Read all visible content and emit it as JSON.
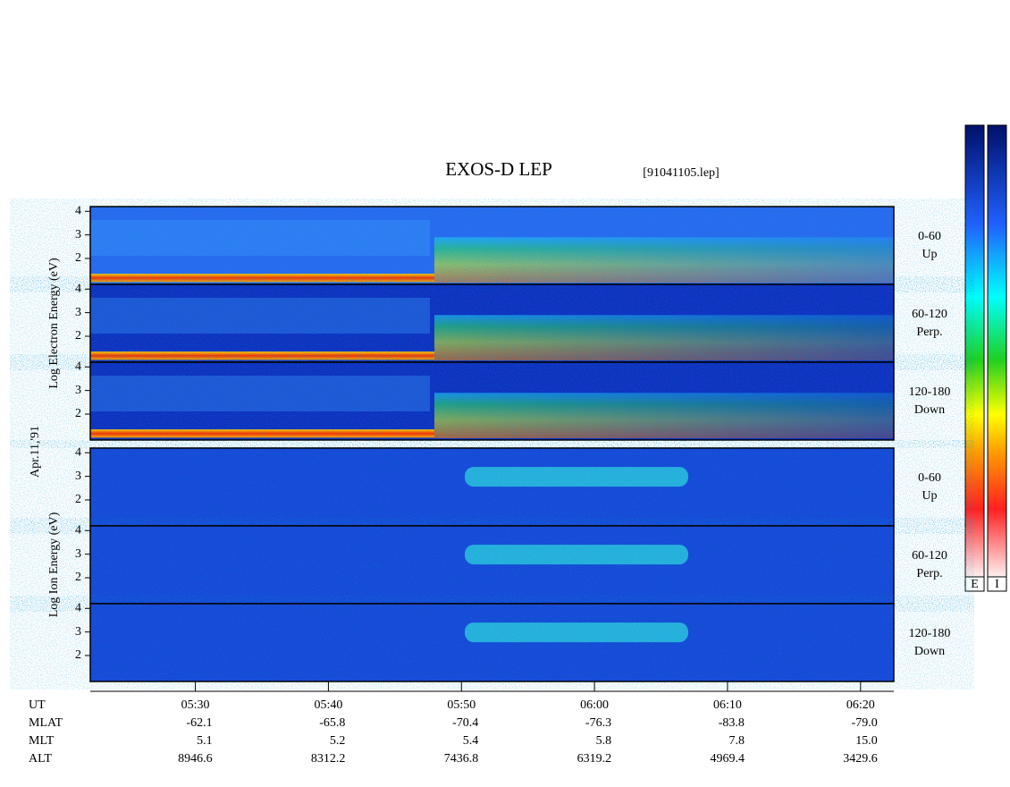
{
  "chart_data": {
    "type": "spectrogram",
    "title": "EXOS-D LEP",
    "file_label": "[91041105.lep]",
    "date_label": "Apr.11,'91",
    "groups": [
      {
        "ylabel": "Log Electron Energy (eV)",
        "panels": [
          {
            "angle": "0-60",
            "direction": "Up"
          },
          {
            "angle": "60-120",
            "direction": "Perp."
          },
          {
            "angle": "120-180",
            "direction": "Down"
          }
        ]
      },
      {
        "ylabel": "Log Ion Energy (eV)",
        "panels": [
          {
            "angle": "0-60",
            "direction": "Up"
          },
          {
            "angle": "60-120",
            "direction": "Perp."
          },
          {
            "angle": "120-180",
            "direction": "Down"
          }
        ]
      }
    ],
    "ylim": [
      0.9,
      4.2
    ],
    "yticks": [
      2,
      3,
      4
    ],
    "xlim": [
      322.1,
      382.5
    ],
    "xticks": [
      {
        "value": 330,
        "label": "05:30"
      },
      {
        "value": 340,
        "label": "05:40"
      },
      {
        "value": 350,
        "label": "05:50"
      },
      {
        "value": 360,
        "label": "06:00"
      },
      {
        "value": 370,
        "label": "06:10"
      },
      {
        "value": 380,
        "label": "06:20"
      }
    ],
    "x_row_label": "UT",
    "orbit_rows": [
      {
        "name": "MLAT",
        "cells": [
          "-62.1",
          "-65.8",
          "-70.4",
          "-76.3",
          "-83.8",
          "-79.0"
        ]
      },
      {
        "name": "MLT",
        "cells": [
          "5.1",
          "5.2",
          "5.4",
          "5.8",
          "7.8",
          "15.0"
        ]
      },
      {
        "name": "ALT",
        "cells": [
          "8946.6",
          "8312.2",
          "7436.8",
          "6319.2",
          "4969.4",
          "3429.6"
        ]
      }
    ],
    "colorbar_labels": [
      "E",
      "I"
    ]
  }
}
